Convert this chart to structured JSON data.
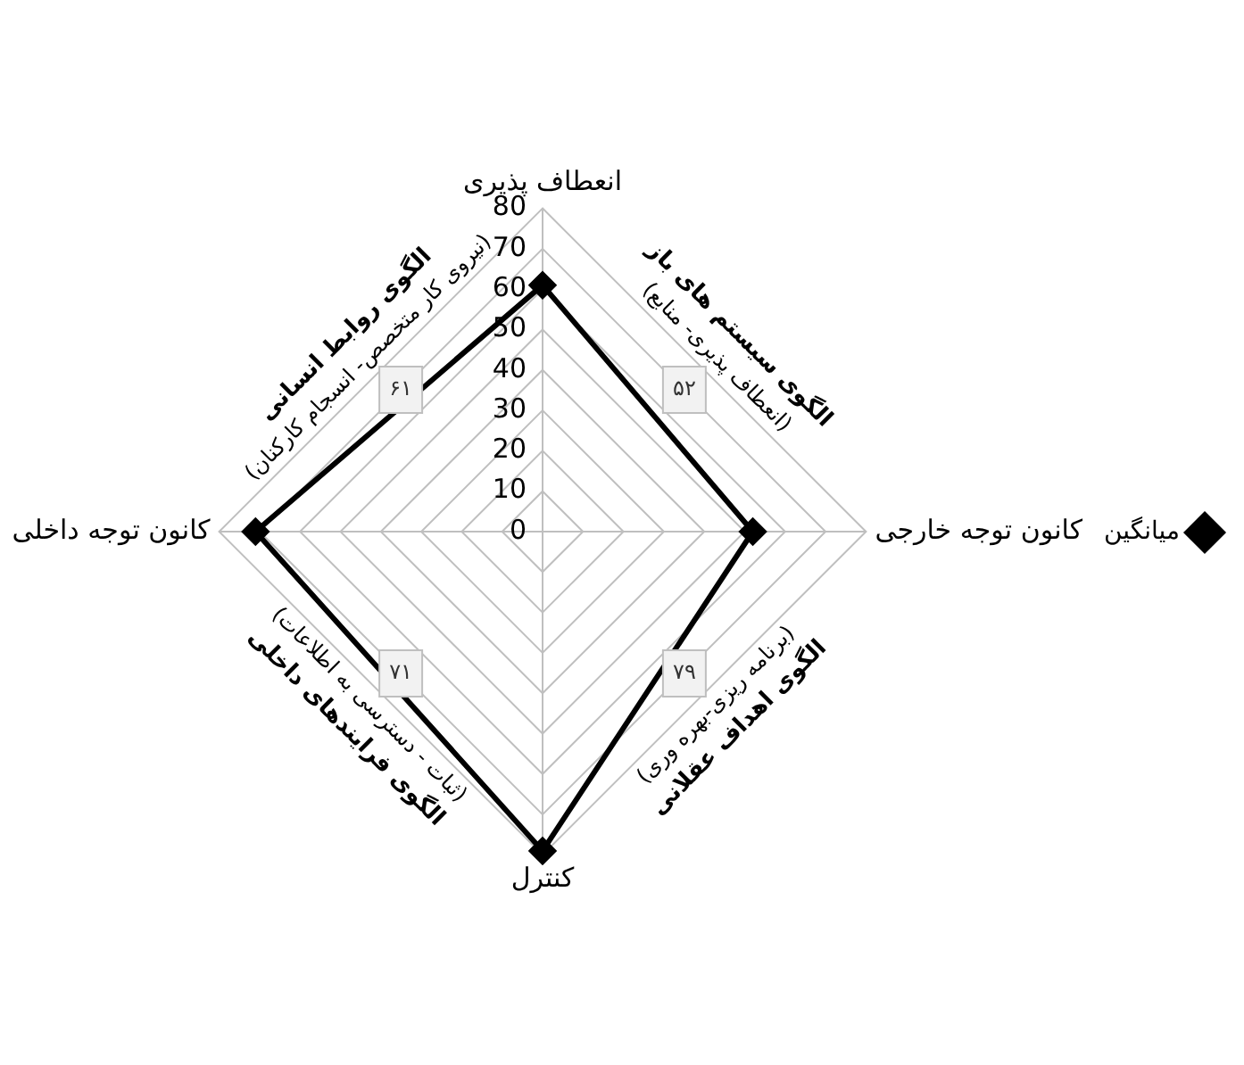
{
  "chart_data": {
    "type": "radar",
    "categories": [
      "انعطاف پذیری",
      "کانون توجه خارجی",
      "کنترل",
      "کانون توجه داخلی"
    ],
    "series": [
      {
        "name": "میانگین",
        "color": "#000000",
        "values": [
          61,
          52,
          79,
          71
        ]
      }
    ],
    "ylim": [
      0,
      80
    ],
    "yticks": [
      0,
      10,
      20,
      30,
      40,
      50,
      60,
      70,
      80
    ],
    "grid": true,
    "legend": "right",
    "marker": "diamond",
    "line_style": "solid",
    "annotations": [
      "الگوی روابط انسانی",
      "(نیروی کار متخصص- انسجام کارکنان)",
      "۶۱",
      "الگوی سیستم های باز",
      "(انعطاف پذیری- منابع)",
      "۵۲",
      "الگوی اهداف عقلانی",
      "(برنامه ریزی-بهره وری)",
      "۷۹",
      "الگوی فرایندهای داخلی",
      "(ثبات - دسترسی به اطلاعات)",
      "۷۱"
    ]
  }
}
